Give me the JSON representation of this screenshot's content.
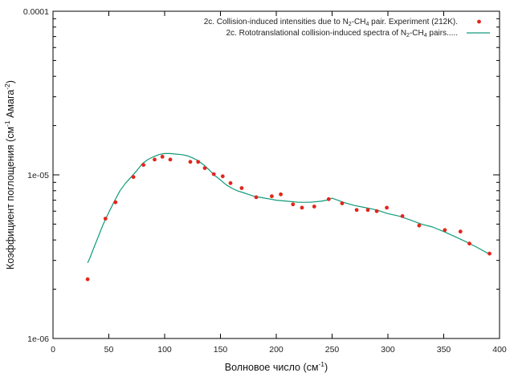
{
  "chart_data": {
    "type": "scatter",
    "xlabel": {
      "text": "Волновое число (см",
      "sup": "-1",
      "tail": ")"
    },
    "ylabel": {
      "text": "Коэффициент поглощения (см",
      "sup1": "-1",
      "mid": " Амага",
      "sup2": "-2",
      "tail": ")"
    },
    "xlim": [
      0,
      400
    ],
    "ylim": [
      1e-06,
      0.0001
    ],
    "yscale": "log",
    "grid": false,
    "legend_position": "top-right",
    "x_ticks": [
      0,
      50,
      100,
      150,
      200,
      250,
      300,
      350,
      400
    ],
    "x_tick_labels": [
      "0",
      "50",
      "100",
      "150",
      "200",
      "250",
      "300",
      "350",
      "400"
    ],
    "y_ticks": [
      1e-06,
      1e-05,
      0.0001
    ],
    "y_tick_labels": [
      "1e-06",
      "1e-05",
      "0.0001"
    ],
    "series": [
      {
        "name_parts": [
          "2c. Collision-induced intensities due to N",
          "2",
          "-CH",
          "4",
          " pair. Experiment (212K)."
        ],
        "kind": "points",
        "color": "#e3261d",
        "x": [
          31,
          47,
          56,
          72,
          81,
          91,
          98,
          105,
          123,
          130,
          136,
          144,
          152,
          159,
          169,
          182,
          196,
          204,
          215,
          223,
          234,
          247,
          259,
          272,
          282,
          290,
          299,
          313,
          328,
          351,
          365,
          373,
          391
        ],
        "y": [
          2.3e-06,
          5.4e-06,
          6.8e-06,
          9.7e-06,
          1.15e-05,
          1.24e-05,
          1.29e-05,
          1.24e-05,
          1.2e-05,
          1.2e-05,
          1.1e-05,
          1.01e-05,
          9.8e-06,
          8.9e-06,
          8.3e-06,
          7.3e-06,
          7.4e-06,
          7.6e-06,
          6.6e-06,
          6.3e-06,
          6.4e-06,
          7.1e-06,
          6.7e-06,
          6.1e-06,
          6.1e-06,
          6e-06,
          6.3e-06,
          5.6e-06,
          4.9e-06,
          4.6e-06,
          4.5e-06,
          3.8e-06,
          3.3e-06
        ]
      },
      {
        "name_parts": [
          "2c. Rototranslational collision-induced spectra of N",
          "2",
          "-CH",
          "4",
          " pairs....."
        ],
        "kind": "line",
        "color": "#0e9b7a",
        "x": [
          31,
          33,
          36,
          40,
          45,
          50,
          55,
          60,
          65,
          70,
          75,
          80,
          85,
          90,
          95,
          100,
          105,
          110,
          115,
          120,
          125,
          130,
          135,
          140,
          145,
          150,
          155,
          160,
          165,
          170,
          175,
          180,
          185,
          190,
          195,
          200,
          210,
          220,
          230,
          240,
          245,
          250,
          255,
          260,
          270,
          280,
          290,
          300,
          310,
          320,
          330,
          340,
          350,
          360,
          370,
          380,
          390
        ],
        "y": [
          2.9e-06,
          3.1e-06,
          3.5e-06,
          4.1e-06,
          5e-06,
          5.9e-06,
          6.9e-06,
          8e-06,
          8.9e-06,
          9.7e-06,
          1.06e-05,
          1.17e-05,
          1.24e-05,
          1.29e-05,
          1.33e-05,
          1.35e-05,
          1.35e-05,
          1.34e-05,
          1.33e-05,
          1.31e-05,
          1.27e-05,
          1.22e-05,
          1.15e-05,
          1.07e-05,
          9.9e-06,
          9.3e-06,
          8.7e-06,
          8.3e-06,
          8e-06,
          7.8e-06,
          7.6e-06,
          7.4e-06,
          7.3e-06,
          7.2e-06,
          7.1e-06,
          7e-06,
          6.9e-06,
          6.8e-06,
          6.8e-06,
          6.9e-06,
          7e-06,
          7.2e-06,
          7e-06,
          6.8e-06,
          6.5e-06,
          6.3e-06,
          6.1e-06,
          5.8e-06,
          5.6e-06,
          5.3e-06,
          5e-06,
          4.8e-06,
          4.5e-06,
          4.2e-06,
          3.9e-06,
          3.6e-06,
          3.3e-06
        ]
      }
    ]
  }
}
